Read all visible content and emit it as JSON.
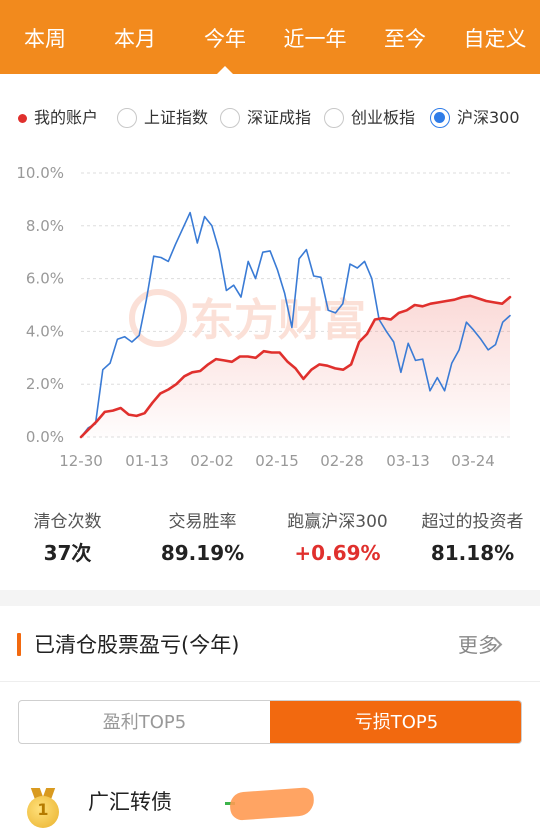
{
  "tabs": [
    {
      "label": "本周",
      "active": false
    },
    {
      "label": "本月",
      "active": false
    },
    {
      "label": "今年",
      "active": true
    },
    {
      "label": "近一年",
      "active": false
    },
    {
      "label": "至今",
      "active": false
    },
    {
      "label": "自定义",
      "active": false
    }
  ],
  "legend": {
    "my_account": "我的账户",
    "options": [
      {
        "label": "上证指数",
        "selected": false
      },
      {
        "label": "深证成指",
        "selected": false
      },
      {
        "label": "创业板指",
        "selected": false
      },
      {
        "label": "沪深300",
        "selected": true
      }
    ]
  },
  "colors": {
    "brand_orange": "#f28a1d",
    "accent_orange": "#f2690f",
    "account_line": "#e0302d",
    "index_line": "#3a7bd5",
    "positive": "#e0302d"
  },
  "chart_data": {
    "type": "line",
    "x_tick_labels": [
      "12-30",
      "01-13",
      "02-02",
      "02-15",
      "02-28",
      "03-13",
      "03-24"
    ],
    "y_tick_labels": [
      "0.0%",
      "2.0%",
      "4.0%",
      "6.0%",
      "8.0%",
      "10.0%"
    ],
    "ylim": [
      0,
      10
    ],
    "grid": true,
    "watermark": "东方财富",
    "series": [
      {
        "name": "我的账户",
        "color": "#e0302d",
        "values": [
          0.0,
          0.3,
          0.6,
          0.95,
          1.0,
          1.1,
          0.85,
          0.8,
          0.9,
          1.3,
          1.65,
          1.8,
          2.0,
          2.3,
          2.45,
          2.5,
          2.75,
          2.95,
          2.9,
          2.85,
          3.05,
          3.05,
          3.0,
          3.25,
          3.2,
          3.2,
          2.85,
          2.6,
          2.2,
          2.55,
          2.75,
          2.7,
          2.6,
          2.55,
          2.75,
          3.6,
          3.9,
          4.45,
          4.5,
          4.45,
          4.7,
          4.8,
          5.0,
          4.95,
          5.05,
          5.1,
          5.15,
          5.2,
          5.3,
          5.35,
          5.25,
          5.15,
          5.1,
          5.05,
          5.3
        ]
      },
      {
        "name": "沪深300",
        "color": "#3a7bd5",
        "values": [
          0.0,
          0.35,
          0.5,
          2.55,
          2.8,
          3.7,
          3.8,
          3.6,
          3.85,
          5.2,
          6.85,
          6.8,
          6.65,
          7.3,
          7.9,
          8.5,
          7.35,
          8.35,
          8.0,
          7.05,
          5.55,
          5.75,
          5.3,
          6.65,
          6.0,
          7.0,
          7.05,
          6.35,
          5.45,
          4.15,
          6.75,
          7.1,
          6.1,
          6.05,
          4.8,
          4.7,
          5.05,
          6.55,
          6.4,
          6.65,
          6.0,
          4.45,
          4.0,
          3.6,
          2.45,
          3.55,
          2.9,
          2.95,
          1.75,
          2.25,
          1.75,
          2.8,
          3.3,
          4.35,
          4.05,
          3.7,
          3.3,
          3.5,
          4.35,
          4.6
        ]
      }
    ]
  },
  "stats": [
    {
      "label": "清仓次数",
      "value": "37次"
    },
    {
      "label": "交易胜率",
      "value": "89.19%"
    },
    {
      "label": "跑赢沪深300",
      "value": "+0.69%"
    },
    {
      "label": "超过的投资者",
      "value": "81.18%"
    }
  ],
  "section": {
    "title": "已清仓股票盈亏(今年)",
    "more_label": "更多"
  },
  "segment": {
    "profit_label": "盈利TOP5",
    "loss_label": "亏损TOP5",
    "selected": "loss"
  },
  "list": [
    {
      "rank": "1",
      "name": "广汇转债"
    }
  ]
}
